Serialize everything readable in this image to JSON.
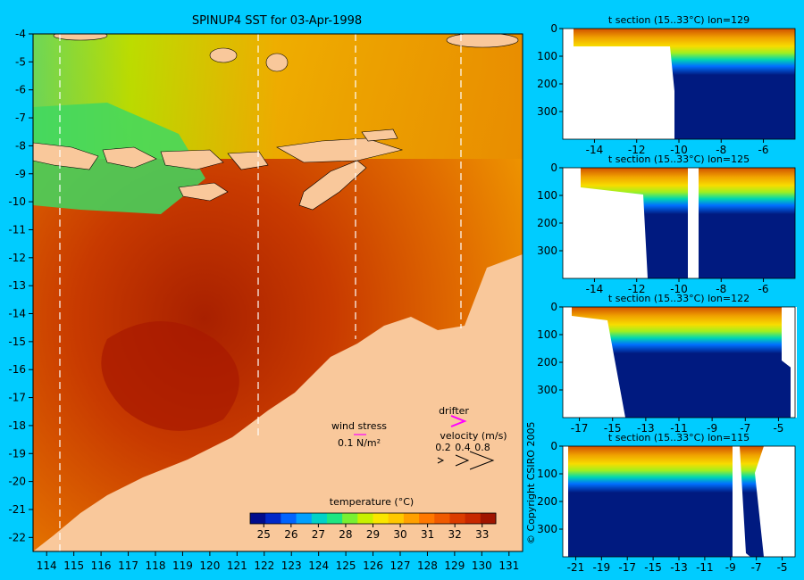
{
  "title": "SPINUP4 SST for 03-Apr-1998",
  "copyright": "© Copyright CSIRO 2005",
  "colors": {
    "background": "#00ccff",
    "land": "#f9c89b",
    "deep": "#001a80",
    "section_line": "#ffffff",
    "arrow": "#ff00ff"
  },
  "map": {
    "lon_ticks": [
      "114",
      "115",
      "116",
      "117",
      "118",
      "119",
      "120",
      "121",
      "122",
      "123",
      "124",
      "125",
      "126",
      "127",
      "128",
      "129",
      "130",
      "131"
    ],
    "lat_ticks": [
      "-4",
      "-5",
      "-6",
      "-7",
      "-8",
      "-9",
      "-10",
      "-11",
      "-12",
      "-13",
      "-14",
      "-15",
      "-16",
      "-17",
      "-18",
      "-19",
      "-20",
      "-21",
      "-22"
    ],
    "section_lons": [
      114.5,
      121.8,
      125.4,
      129.3
    ]
  },
  "legend": {
    "wind_stress_label": "wind stress",
    "wind_stress_value": "0.1 N/m²",
    "drifter_label": "drifter",
    "velocity_label": "velocity (m/s)",
    "velocity_values": [
      "0.2",
      "0.4",
      "0.8"
    ]
  },
  "colorbar": {
    "title": "temperature (°C)",
    "ticks": [
      "25",
      "26",
      "27",
      "28",
      "29",
      "30",
      "31",
      "32",
      "33"
    ],
    "colors": [
      "#000c8c",
      "#0028c8",
      "#0064ff",
      "#00a0ff",
      "#00d2c8",
      "#1ee682",
      "#78f032",
      "#c8f000",
      "#fae600",
      "#ffc800",
      "#ffa000",
      "#ff7800",
      "#f05a00",
      "#dc3c00",
      "#c82800",
      "#a01400"
    ]
  },
  "chart_data": [
    {
      "type": "heatmap",
      "title": "SPINUP4 SST for 03-Apr-1998",
      "xlim": [
        113.5,
        131.5
      ],
      "ylim": [
        -22.5,
        -4
      ],
      "colorbar_range": [
        24.5,
        33.5
      ],
      "colorbar_label": "temperature (°C)"
    },
    {
      "type": "heatmap",
      "title": "t section (15..33°C) lon=129",
      "x_ticks": [
        "-14",
        "-12",
        "-10",
        "-8",
        "-6"
      ],
      "y_ticks": [
        "0",
        "100",
        "200",
        "300"
      ]
    },
    {
      "type": "heatmap",
      "title": "t section (15..33°C) lon=125",
      "x_ticks": [
        "-14",
        "-12",
        "-10",
        "-8",
        "-6"
      ],
      "y_ticks": [
        "0",
        "100",
        "200",
        "300"
      ]
    },
    {
      "type": "heatmap",
      "title": "t section (15..33°C) lon=122",
      "x_ticks": [
        "-17",
        "-15",
        "-13",
        "-11",
        "-9",
        "-7",
        "-5"
      ],
      "y_ticks": [
        "0",
        "100",
        "200",
        "300"
      ]
    },
    {
      "type": "heatmap",
      "title": "t section (15..33°C) lon=115",
      "x_ticks": [
        "-21",
        "-19",
        "-17",
        "-15",
        "-13",
        "-11",
        "-9",
        "-7",
        "-5"
      ],
      "y_ticks": [
        "0",
        "100",
        "200",
        "300"
      ]
    }
  ],
  "sections": [
    {
      "title": "t section (15..33°C) lon=129",
      "x_ticks": [
        "-14",
        "-12",
        "-10",
        "-8",
        "-6"
      ],
      "y_ticks": [
        "0",
        "100",
        "200",
        "300"
      ]
    },
    {
      "title": "t section (15..33°C) lon=125",
      "x_ticks": [
        "-14",
        "-12",
        "-10",
        "-8",
        "-6"
      ],
      "y_ticks": [
        "0",
        "100",
        "200",
        "300"
      ]
    },
    {
      "title": "t section (15..33°C) lon=122",
      "x_ticks": [
        "-17",
        "-15",
        "-13",
        "-11",
        "-9",
        "-7",
        "-5"
      ],
      "y_ticks": [
        "0",
        "100",
        "200",
        "300"
      ]
    },
    {
      "title": "t section (15..33°C) lon=115",
      "x_ticks": [
        "-21",
        "-19",
        "-17",
        "-15",
        "-13",
        "-11",
        "-9",
        "-7",
        "-5"
      ],
      "y_ticks": [
        "0",
        "100",
        "200",
        "300"
      ]
    }
  ]
}
